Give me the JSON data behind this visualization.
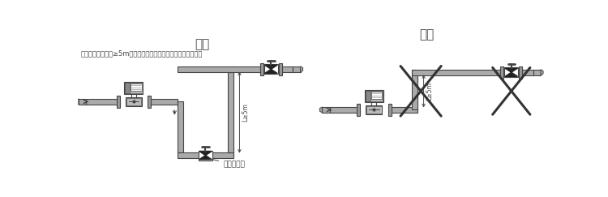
{
  "title_left": "排气",
  "title_right": "真空",
  "note_left": "防止真空，落差管≥5m时需在流量计下游最高处安装自动排气阀",
  "label_top": "自动排气孔",
  "label_height": "L≥5m",
  "pipe_color": "#aaaaaa",
  "line_color": "#444444",
  "bg_color": "#ffffff",
  "device_color": "#bbbbbb",
  "valve_color": "#222222",
  "flange_color": "#999999",
  "cross_color": "#333333",
  "font_size_title": 11,
  "font_size_note": 6.0,
  "font_size_label": 6.5
}
